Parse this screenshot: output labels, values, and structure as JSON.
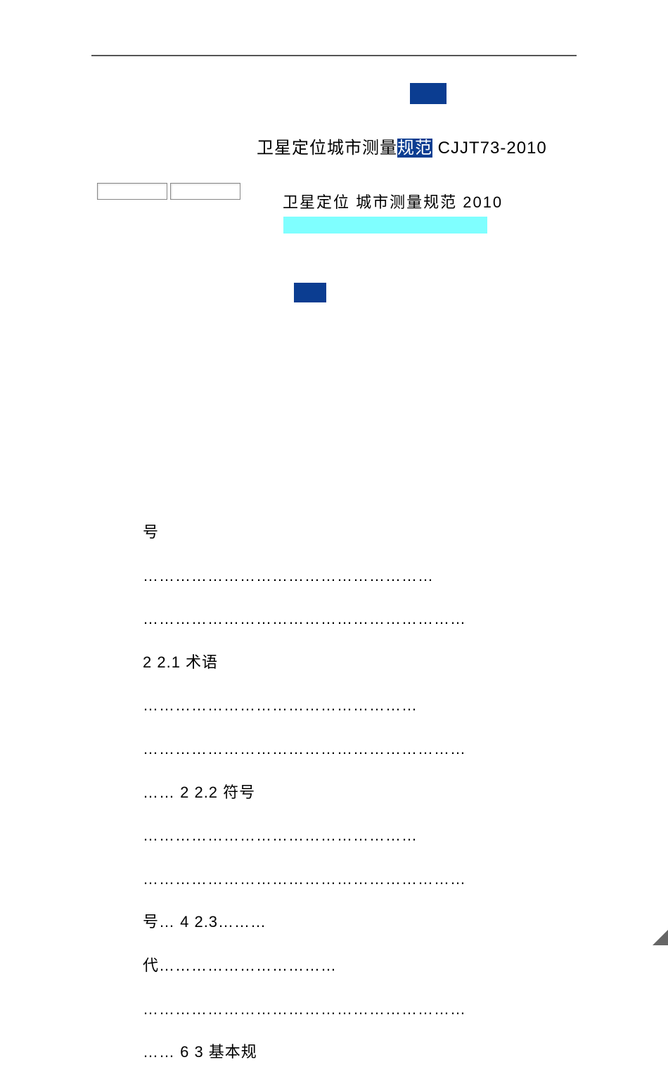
{
  "colors": {
    "dark_blue": "#0b3d91",
    "cyan": "#7fffff",
    "text": "#000000",
    "rule": "#555555",
    "resize": "#666666"
  },
  "title": {
    "pre": "卫星定位城市测量",
    "hl": "规范",
    "post": "   CJJT73-2010"
  },
  "subtitle": "卫星定位  城市测量规范  2010",
  "toc_text": "号 ……………………………………………… ……………………………………………………  2 2.1   术语 …………………………………………… …………………………………………………… …… 2 2.2      符号 …………………………………………… ……………………………………………………号… 4 2.3………代…………………………… …………………………………………………… …… 6 3      基本规"
}
